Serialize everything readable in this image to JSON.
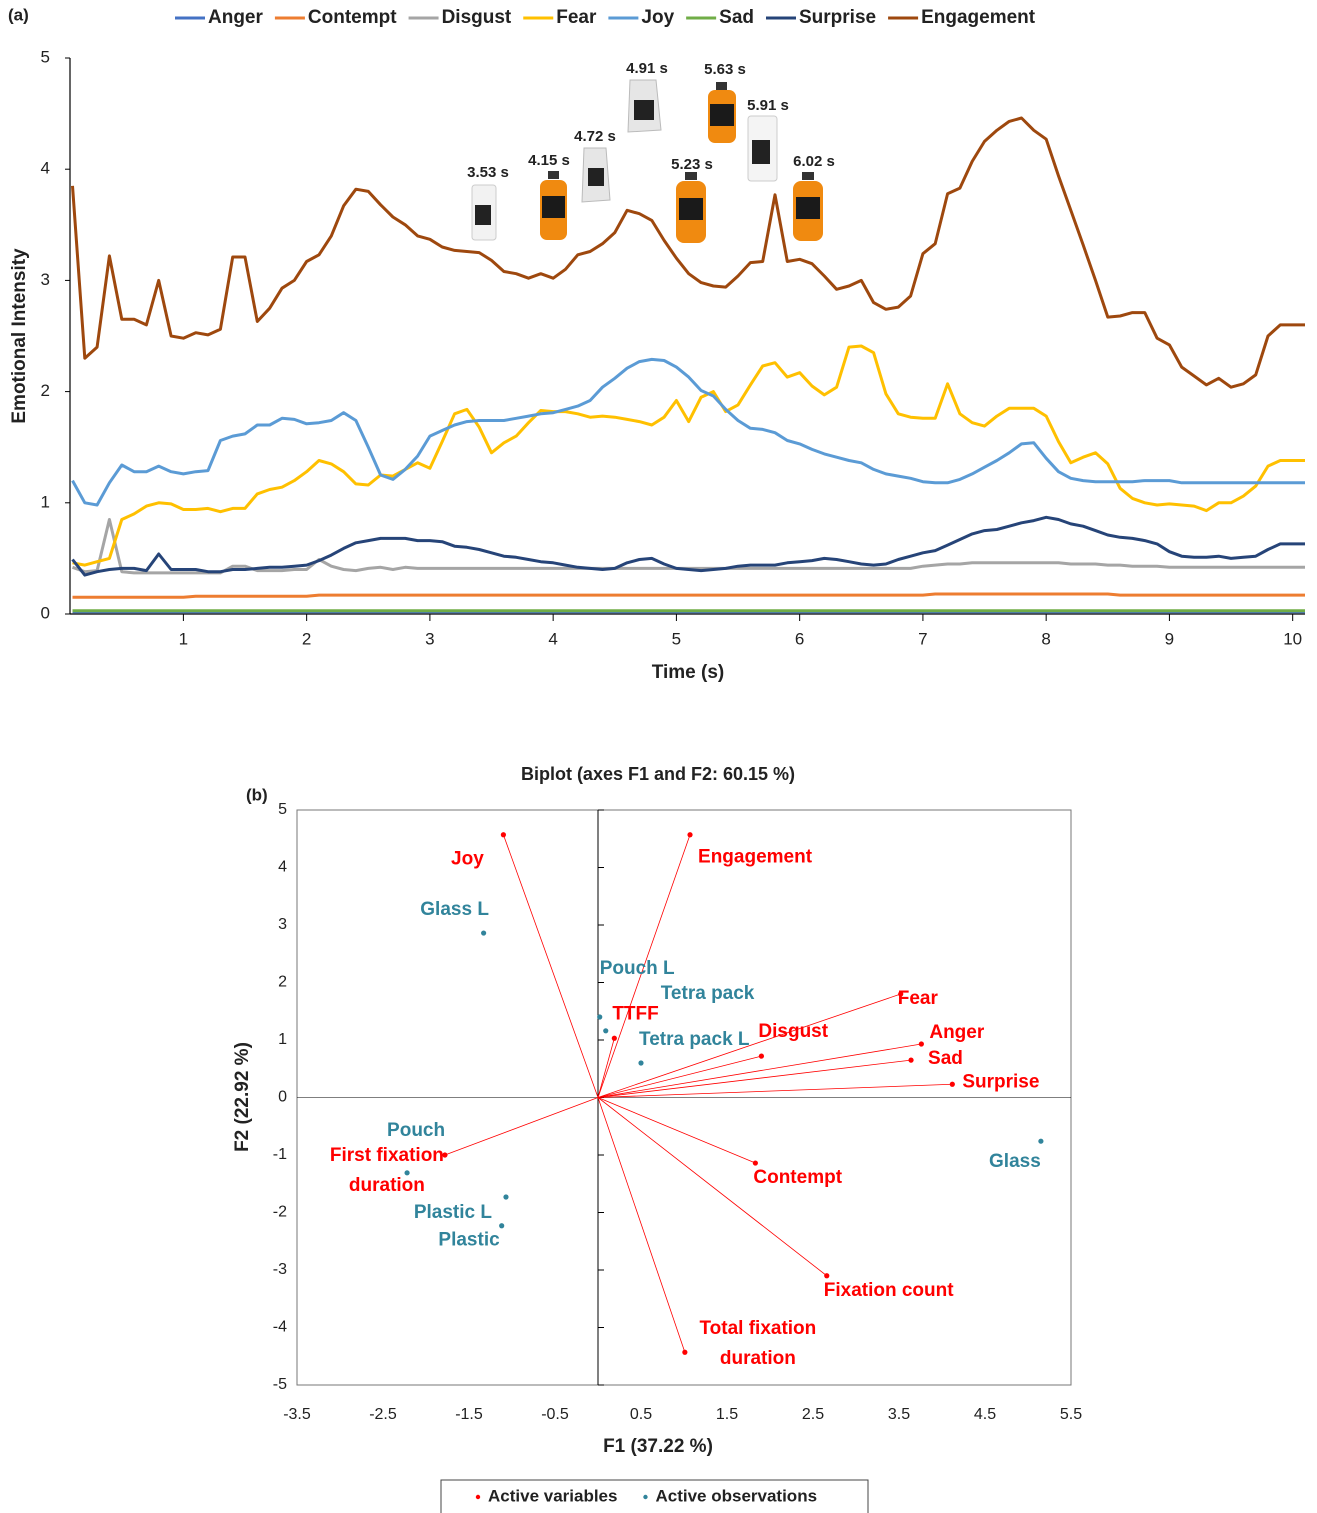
{
  "chart_data": [
    {
      "type": "line",
      "panel_label": "(a)",
      "xlabel": "Time (s)",
      "ylabel": "Emotional Intensity",
      "legend": "top",
      "xlim": [
        0.08,
        10.1
      ],
      "xticks": [
        1,
        2,
        3,
        4,
        5,
        6,
        7,
        8,
        9,
        10
      ],
      "ylim": [
        0,
        5
      ],
      "yticks": [
        0,
        1,
        2,
        3,
        4,
        5
      ],
      "annotations": [
        "3.53 s",
        "4.15 s",
        "4.72 s",
        "4.91 s",
        "5.23 s",
        "5.63 s",
        "5.91 s",
        "6.02 s"
      ],
      "x": [
        0.1,
        0.2,
        0.3,
        0.4,
        0.5,
        0.6,
        0.7,
        0.8,
        0.9,
        1.0,
        1.1,
        1.2,
        1.3,
        1.4,
        1.5,
        1.6,
        1.7,
        1.8,
        1.9,
        2.0,
        2.1,
        2.2,
        2.3,
        2.4,
        2.5,
        2.6,
        2.7,
        2.8,
        2.9,
        3.0,
        3.1,
        3.2,
        3.3,
        3.4,
        3.5,
        3.6,
        3.7,
        3.8,
        3.9,
        4.0,
        4.1,
        4.2,
        4.3,
        4.4,
        4.5,
        4.6,
        4.7,
        4.8,
        4.9,
        5.0,
        5.1,
        5.2,
        5.3,
        5.4,
        5.5,
        5.6,
        5.7,
        5.8,
        5.9,
        6.0,
        6.1,
        6.2,
        6.3,
        6.4,
        6.5,
        6.6,
        6.7,
        6.8,
        6.9,
        7.0,
        7.1,
        7.2,
        7.3,
        7.4,
        7.5,
        7.6,
        7.7,
        7.8,
        7.9,
        8.0,
        8.1,
        8.2,
        8.3,
        8.4,
        8.5,
        8.6,
        8.7,
        8.8,
        8.9,
        9.0,
        9.1,
        9.2,
        9.3,
        9.4,
        9.5,
        9.6,
        9.7,
        9.8,
        9.9,
        10.0,
        10.1
      ],
      "series": [
        {
          "name": "Anger",
          "color": "#4472c4",
          "values": [
            0.02,
            0.02,
            0.02,
            0.02,
            0.02,
            0.02,
            0.02,
            0.02,
            0.02,
            0.02,
            0.02,
            0.02,
            0.02,
            0.02,
            0.02,
            0.02,
            0.02,
            0.02,
            0.02,
            0.02,
            0.02,
            0.02,
            0.02,
            0.02,
            0.02,
            0.02,
            0.02,
            0.02,
            0.02,
            0.02,
            0.02,
            0.02,
            0.02,
            0.02,
            0.02,
            0.02,
            0.02,
            0.02,
            0.02,
            0.02,
            0.02,
            0.02,
            0.02,
            0.02,
            0.02,
            0.02,
            0.02,
            0.02,
            0.02,
            0.02,
            0.02,
            0.02,
            0.02,
            0.02,
            0.02,
            0.02,
            0.02,
            0.02,
            0.02,
            0.02,
            0.02,
            0.02,
            0.02,
            0.02,
            0.02,
            0.02,
            0.02,
            0.02,
            0.02,
            0.02,
            0.02,
            0.02,
            0.02,
            0.02,
            0.02,
            0.02,
            0.02,
            0.02,
            0.02,
            0.02,
            0.02,
            0.02,
            0.02,
            0.02,
            0.02,
            0.02,
            0.02,
            0.02,
            0.02,
            0.02,
            0.02,
            0.02,
            0.02,
            0.02,
            0.02,
            0.02,
            0.02,
            0.02,
            0.02,
            0.02,
            0.02
          ]
        },
        {
          "name": "Contempt",
          "color": "#ed7d31",
          "values": [
            0.15,
            0.15,
            0.15,
            0.15,
            0.15,
            0.15,
            0.15,
            0.15,
            0.15,
            0.15,
            0.16,
            0.16,
            0.16,
            0.16,
            0.16,
            0.16,
            0.16,
            0.16,
            0.16,
            0.16,
            0.17,
            0.17,
            0.17,
            0.17,
            0.17,
            0.17,
            0.17,
            0.17,
            0.17,
            0.17,
            0.17,
            0.17,
            0.17,
            0.17,
            0.17,
            0.17,
            0.17,
            0.17,
            0.17,
            0.17,
            0.17,
            0.17,
            0.17,
            0.17,
            0.17,
            0.17,
            0.17,
            0.17,
            0.17,
            0.17,
            0.17,
            0.17,
            0.17,
            0.17,
            0.17,
            0.17,
            0.17,
            0.17,
            0.17,
            0.17,
            0.17,
            0.17,
            0.17,
            0.17,
            0.17,
            0.17,
            0.17,
            0.17,
            0.17,
            0.17,
            0.18,
            0.18,
            0.18,
            0.18,
            0.18,
            0.18,
            0.18,
            0.18,
            0.18,
            0.18,
            0.18,
            0.18,
            0.18,
            0.18,
            0.18,
            0.17,
            0.17,
            0.17,
            0.17,
            0.17,
            0.17,
            0.17,
            0.17,
            0.17,
            0.17,
            0.17,
            0.17,
            0.17,
            0.17,
            0.17,
            0.17
          ]
        },
        {
          "name": "Disgust",
          "color": "#a5a5a5",
          "values": [
            0.42,
            0.38,
            0.39,
            0.85,
            0.38,
            0.37,
            0.37,
            0.37,
            0.37,
            0.37,
            0.37,
            0.37,
            0.37,
            0.43,
            0.43,
            0.39,
            0.39,
            0.39,
            0.4,
            0.4,
            0.49,
            0.43,
            0.4,
            0.39,
            0.41,
            0.42,
            0.4,
            0.42,
            0.41,
            0.41,
            0.41,
            0.41,
            0.41,
            0.41,
            0.41,
            0.41,
            0.41,
            0.41,
            0.41,
            0.41,
            0.41,
            0.41,
            0.41,
            0.41,
            0.41,
            0.41,
            0.41,
            0.41,
            0.41,
            0.41,
            0.41,
            0.41,
            0.41,
            0.41,
            0.41,
            0.41,
            0.41,
            0.41,
            0.41,
            0.41,
            0.41,
            0.41,
            0.41,
            0.41,
            0.41,
            0.41,
            0.41,
            0.41,
            0.41,
            0.43,
            0.44,
            0.45,
            0.45,
            0.46,
            0.46,
            0.46,
            0.46,
            0.46,
            0.46,
            0.46,
            0.46,
            0.45,
            0.45,
            0.45,
            0.44,
            0.44,
            0.43,
            0.43,
            0.43,
            0.42,
            0.42,
            0.42,
            0.42,
            0.42,
            0.42,
            0.42,
            0.42,
            0.42,
            0.42,
            0.42,
            0.42
          ]
        },
        {
          "name": "Fear",
          "color": "#ffc000",
          "values": [
            0.46,
            0.44,
            0.47,
            0.5,
            0.85,
            0.9,
            0.97,
            1.0,
            0.99,
            0.94,
            0.94,
            0.95,
            0.92,
            0.95,
            0.95,
            1.08,
            1.12,
            1.14,
            1.2,
            1.28,
            1.38,
            1.35,
            1.28,
            1.17,
            1.16,
            1.25,
            1.24,
            1.3,
            1.36,
            1.31,
            1.55,
            1.8,
            1.84,
            1.68,
            1.45,
            1.54,
            1.6,
            1.72,
            1.83,
            1.82,
            1.82,
            1.8,
            1.77,
            1.78,
            1.77,
            1.75,
            1.73,
            1.7,
            1.77,
            1.92,
            1.73,
            1.95,
            2.0,
            1.82,
            1.88,
            2.06,
            2.23,
            2.26,
            2.13,
            2.17,
            2.05,
            1.97,
            2.04,
            2.4,
            2.41,
            2.35,
            1.98,
            1.8,
            1.77,
            1.76,
            1.76,
            2.07,
            1.8,
            1.72,
            1.69,
            1.78,
            1.85,
            1.85,
            1.85,
            1.78,
            1.55,
            1.36,
            1.41,
            1.45,
            1.35,
            1.13,
            1.04,
            1.0,
            0.98,
            0.99,
            0.98,
            0.97,
            0.93,
            1.0,
            1.0,
            1.06,
            1.15,
            1.33,
            1.38,
            1.38,
            1.38
          ]
        },
        {
          "name": "Joy",
          "color": "#5b9bd5",
          "values": [
            1.2,
            1.0,
            0.98,
            1.18,
            1.34,
            1.28,
            1.28,
            1.33,
            1.28,
            1.26,
            1.28,
            1.29,
            1.56,
            1.6,
            1.62,
            1.7,
            1.7,
            1.76,
            1.75,
            1.71,
            1.72,
            1.74,
            1.81,
            1.74,
            1.5,
            1.25,
            1.21,
            1.3,
            1.42,
            1.6,
            1.65,
            1.7,
            1.73,
            1.74,
            1.74,
            1.74,
            1.76,
            1.78,
            1.8,
            1.81,
            1.84,
            1.87,
            1.92,
            2.04,
            2.12,
            2.21,
            2.27,
            2.29,
            2.28,
            2.22,
            2.13,
            2.01,
            1.96,
            1.84,
            1.74,
            1.67,
            1.66,
            1.63,
            1.56,
            1.53,
            1.48,
            1.44,
            1.41,
            1.38,
            1.36,
            1.3,
            1.26,
            1.24,
            1.22,
            1.19,
            1.18,
            1.18,
            1.21,
            1.26,
            1.32,
            1.38,
            1.45,
            1.53,
            1.54,
            1.4,
            1.28,
            1.22,
            1.2,
            1.19,
            1.19,
            1.19,
            1.19,
            1.2,
            1.2,
            1.2,
            1.18,
            1.18,
            1.18,
            1.18,
            1.18,
            1.18,
            1.18,
            1.18,
            1.18,
            1.18,
            1.18
          ]
        },
        {
          "name": "Sad",
          "color": "#70ad47",
          "values": [
            0.03,
            0.03,
            0.03,
            0.03,
            0.03,
            0.03,
            0.03,
            0.03,
            0.03,
            0.03,
            0.03,
            0.03,
            0.03,
            0.03,
            0.03,
            0.03,
            0.03,
            0.03,
            0.03,
            0.03,
            0.03,
            0.03,
            0.03,
            0.03,
            0.03,
            0.03,
            0.03,
            0.03,
            0.03,
            0.03,
            0.03,
            0.03,
            0.03,
            0.03,
            0.03,
            0.03,
            0.03,
            0.03,
            0.03,
            0.03,
            0.03,
            0.03,
            0.03,
            0.03,
            0.03,
            0.03,
            0.03,
            0.03,
            0.03,
            0.03,
            0.03,
            0.03,
            0.03,
            0.03,
            0.03,
            0.03,
            0.03,
            0.03,
            0.03,
            0.03,
            0.03,
            0.03,
            0.03,
            0.03,
            0.03,
            0.03,
            0.03,
            0.03,
            0.03,
            0.03,
            0.03,
            0.03,
            0.03,
            0.03,
            0.03,
            0.03,
            0.03,
            0.03,
            0.03,
            0.03,
            0.03,
            0.03,
            0.03,
            0.03,
            0.03,
            0.03,
            0.03,
            0.03,
            0.03,
            0.03,
            0.03,
            0.03,
            0.03,
            0.03,
            0.03,
            0.03,
            0.03,
            0.03,
            0.03,
            0.03,
            0.03
          ]
        },
        {
          "name": "Surprise",
          "color": "#264478",
          "values": [
            0.49,
            0.35,
            0.38,
            0.4,
            0.41,
            0.41,
            0.39,
            0.54,
            0.4,
            0.4,
            0.4,
            0.38,
            0.38,
            0.4,
            0.4,
            0.41,
            0.42,
            0.42,
            0.43,
            0.44,
            0.48,
            0.53,
            0.59,
            0.64,
            0.66,
            0.68,
            0.68,
            0.68,
            0.66,
            0.66,
            0.65,
            0.61,
            0.6,
            0.58,
            0.55,
            0.52,
            0.51,
            0.49,
            0.47,
            0.46,
            0.44,
            0.42,
            0.41,
            0.4,
            0.41,
            0.46,
            0.49,
            0.5,
            0.45,
            0.41,
            0.4,
            0.39,
            0.4,
            0.41,
            0.43,
            0.44,
            0.44,
            0.44,
            0.46,
            0.47,
            0.48,
            0.5,
            0.49,
            0.47,
            0.45,
            0.44,
            0.45,
            0.49,
            0.52,
            0.55,
            0.57,
            0.62,
            0.67,
            0.72,
            0.75,
            0.76,
            0.79,
            0.82,
            0.84,
            0.87,
            0.85,
            0.81,
            0.79,
            0.75,
            0.71,
            0.69,
            0.68,
            0.66,
            0.63,
            0.56,
            0.52,
            0.51,
            0.51,
            0.52,
            0.5,
            0.51,
            0.52,
            0.58,
            0.63,
            0.63,
            0.63
          ]
        },
        {
          "name": "Engagement",
          "color": "#9e480e",
          "values": [
            3.85,
            2.3,
            2.4,
            3.22,
            2.65,
            2.65,
            2.6,
            3.0,
            2.5,
            2.48,
            2.53,
            2.51,
            2.56,
            3.21,
            3.21,
            2.63,
            2.75,
            2.93,
            3.0,
            3.17,
            3.23,
            3.4,
            3.67,
            3.82,
            3.8,
            3.68,
            3.57,
            3.5,
            3.4,
            3.37,
            3.3,
            3.27,
            3.26,
            3.25,
            3.18,
            3.08,
            3.06,
            3.02,
            3.06,
            3.02,
            3.1,
            3.23,
            3.26,
            3.33,
            3.43,
            3.63,
            3.6,
            3.54,
            3.36,
            3.2,
            3.06,
            2.98,
            2.95,
            2.94,
            3.04,
            3.16,
            3.17,
            3.77,
            3.17,
            3.19,
            3.15,
            3.04,
            2.92,
            2.95,
            3.0,
            2.8,
            2.74,
            2.76,
            2.86,
            3.24,
            3.33,
            3.78,
            3.83,
            4.07,
            4.25,
            4.35,
            4.43,
            4.46,
            4.35,
            4.27,
            3.94,
            3.63,
            3.32,
            3.0,
            2.67,
            2.68,
            2.71,
            2.71,
            2.48,
            2.42,
            2.22,
            2.14,
            2.06,
            2.12,
            2.04,
            2.07,
            2.15,
            2.5,
            2.6,
            2.6,
            2.6
          ]
        }
      ]
    },
    {
      "type": "scatter",
      "panel_label": "(b)",
      "title": "Biplot (axes F1 and F2: 60.15 %)",
      "xlabel": "F1 (37.22 %)",
      "ylabel": "F2 (22.92 %)",
      "legend": "bottom",
      "xlim": [
        -3.5,
        5.5
      ],
      "xticks": [
        -3.5,
        -2.5,
        -1.5,
        -0.5,
        0.5,
        1.5,
        2.5,
        3.5,
        4.5,
        5.5
      ],
      "ylim": [
        -5,
        5
      ],
      "yticks": [
        -5,
        -4,
        -3,
        -2,
        -1,
        0,
        1,
        2,
        3,
        4,
        5
      ],
      "series": [
        {
          "name": "Active variables",
          "color": "#ff0000",
          "vectors": true,
          "labels": [
            "Joy",
            "Engagement",
            "Fear",
            "Anger",
            "Sad",
            "Surprise",
            "Disgust",
            "TTFF",
            "Contempt",
            "Fixation count",
            "Total fixation duration",
            "First fixation duration"
          ],
          "x": [
            -1.1,
            1.07,
            3.52,
            3.76,
            3.64,
            4.12,
            1.9,
            0.19,
            1.83,
            2.66,
            1.01,
            -1.78
          ],
          "values": [
            4.57,
            4.57,
            1.8,
            0.93,
            0.65,
            0.23,
            0.72,
            1.03,
            -1.14,
            -3.1,
            -4.43,
            -1.0
          ]
        },
        {
          "name": "Active observations",
          "color": "#31849b",
          "vectors": false,
          "labels": [
            "Glass L",
            "Pouch L",
            "Tetra pack",
            "Tetra pack L",
            "Glass",
            "Pouch",
            "Plastic L",
            "Plastic"
          ],
          "x": [
            -1.33,
            0.02,
            0.09,
            0.5,
            5.15,
            -2.22,
            -1.07,
            -1.12
          ],
          "values": [
            2.86,
            1.4,
            1.16,
            0.6,
            -0.76,
            -1.31,
            -1.73,
            -2.23
          ]
        }
      ]
    }
  ]
}
